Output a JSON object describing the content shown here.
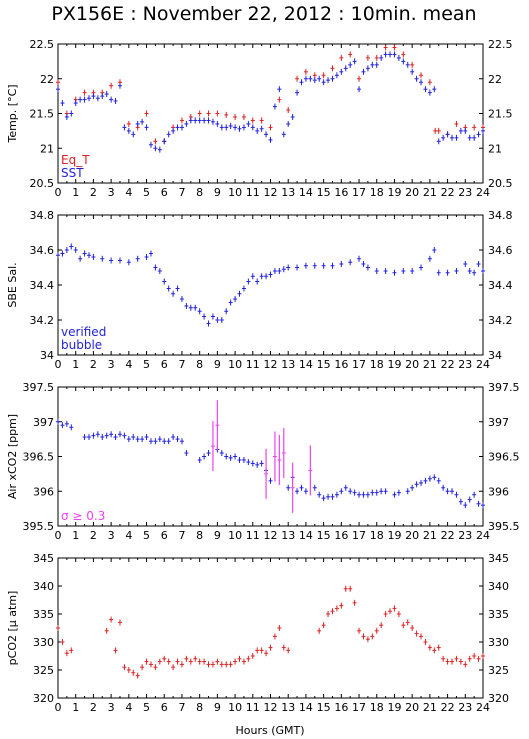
{
  "title": "PX156E : November 22, 2012 : 10min. mean",
  "xlabel": "Hours (GMT)",
  "colors": {
    "blue": "#2222dd",
    "red": "#dd2222",
    "orange": "#ee7711",
    "magenta": "#ee44ee",
    "frame": "#000000"
  },
  "chart_data": [
    {
      "type": "scatter",
      "ylabel": "Temp. [°C]",
      "xlim": [
        0,
        24
      ],
      "ylim": [
        20.5,
        22.5
      ],
      "yticks": [
        "20.5",
        "21",
        "21.5",
        "22",
        "22.5"
      ],
      "xticks": [
        "0",
        "1",
        "2",
        "3",
        "4",
        "5",
        "6",
        "7",
        "8",
        "9",
        "10",
        "11",
        "12",
        "13",
        "14",
        "15",
        "16",
        "17",
        "18",
        "19",
        "20",
        "21",
        "22",
        "23",
        "24"
      ],
      "legend": [
        "Eq_T",
        "SST"
      ],
      "legend_position": "bottom-left",
      "series": [
        {
          "name": "Eq_T",
          "color": "red",
          "x": [
            0.0,
            0.5,
            1.0,
            1.5,
            2.0,
            2.5,
            3.0,
            3.5,
            4.0,
            4.5,
            5.0,
            5.5,
            6.0,
            6.5,
            7.0,
            7.5,
            8.0,
            8.5,
            9.0,
            9.5,
            10.0,
            10.5,
            11.0,
            11.5,
            12.0,
            12.5,
            13.0,
            13.5,
            14.0,
            14.5,
            15.0,
            15.5,
            16.0,
            16.5,
            17.0,
            17.5,
            18.0,
            18.5,
            19.0,
            19.5,
            20.0,
            20.5,
            21.0,
            21.3,
            21.5,
            22.0,
            22.5,
            23.0,
            23.5,
            24.0
          ],
          "y": [
            21.95,
            21.5,
            21.7,
            21.8,
            21.8,
            21.8,
            21.9,
            21.95,
            21.35,
            21.3,
            21.5,
            21.1,
            21.1,
            21.3,
            21.4,
            21.45,
            21.5,
            21.5,
            21.5,
            21.48,
            21.45,
            21.45,
            21.4,
            21.4,
            21.3,
            21.7,
            21.55,
            22.0,
            22.1,
            22.05,
            22.05,
            22.15,
            22.3,
            22.35,
            22.0,
            22.3,
            22.3,
            22.45,
            22.45,
            22.35,
            22.2,
            22.05,
            21.95,
            21.25,
            21.25,
            21.2,
            21.35,
            21.3,
            21.3,
            21.3
          ]
        },
        {
          "name": "SST",
          "color": "blue",
          "x": [
            0.0,
            0.25,
            0.5,
            0.75,
            1.0,
            1.25,
            1.5,
            1.75,
            2.0,
            2.25,
            2.5,
            2.75,
            3.0,
            3.25,
            3.5,
            3.75,
            4.0,
            4.25,
            4.5,
            4.75,
            5.0,
            5.25,
            5.5,
            5.75,
            6.0,
            6.25,
            6.5,
            6.75,
            7.0,
            7.25,
            7.5,
            7.75,
            8.0,
            8.25,
            8.5,
            8.75,
            9.0,
            9.25,
            9.5,
            9.75,
            10.0,
            10.25,
            10.5,
            10.75,
            11.0,
            11.25,
            11.5,
            11.75,
            12.0,
            12.25,
            12.5,
            12.75,
            13.0,
            13.25,
            13.5,
            13.75,
            14.0,
            14.25,
            14.5,
            14.75,
            15.0,
            15.25,
            15.5,
            15.75,
            16.0,
            16.25,
            16.5,
            16.75,
            17.0,
            17.25,
            17.5,
            17.75,
            18.0,
            18.25,
            18.5,
            18.75,
            19.0,
            19.25,
            19.5,
            19.75,
            20.0,
            20.25,
            20.5,
            20.75,
            21.0,
            21.25,
            21.5,
            21.75,
            22.0,
            22.25,
            22.5,
            22.75,
            23.0,
            23.25,
            23.5,
            23.75,
            24.0
          ],
          "y": [
            21.85,
            21.65,
            21.45,
            21.5,
            21.65,
            21.7,
            21.7,
            21.72,
            21.75,
            21.72,
            21.75,
            21.78,
            21.7,
            21.68,
            21.9,
            21.3,
            21.25,
            21.2,
            21.35,
            21.38,
            21.3,
            21.05,
            21.0,
            20.98,
            21.1,
            21.2,
            21.25,
            21.3,
            21.3,
            21.35,
            21.4,
            21.4,
            21.4,
            21.4,
            21.4,
            21.38,
            21.35,
            21.3,
            21.3,
            21.32,
            21.3,
            21.28,
            21.3,
            21.35,
            21.3,
            21.25,
            21.28,
            21.2,
            21.12,
            21.6,
            21.85,
            21.2,
            21.35,
            21.45,
            21.8,
            21.95,
            22.0,
            22.0,
            21.98,
            22.0,
            21.95,
            21.98,
            22.0,
            22.05,
            22.1,
            22.15,
            22.2,
            22.25,
            21.85,
            22.1,
            22.15,
            22.2,
            22.2,
            22.3,
            22.35,
            22.35,
            22.35,
            22.3,
            22.25,
            22.2,
            22.1,
            22.0,
            21.95,
            21.85,
            21.8,
            21.85,
            21.1,
            21.15,
            21.2,
            21.15,
            21.15,
            21.25,
            21.25,
            21.15,
            21.15,
            21.2,
            21.25
          ]
        }
      ]
    },
    {
      "type": "scatter",
      "ylabel": "SBE Sal.",
      "xlim": [
        0,
        24
      ],
      "ylim": [
        34.0,
        34.8
      ],
      "yticks": [
        "34",
        "34.2",
        "34.4",
        "34.6",
        "34.8"
      ],
      "xticks": [
        "0",
        "1",
        "2",
        "3",
        "4",
        "5",
        "6",
        "7",
        "8",
        "9",
        "10",
        "11",
        "12",
        "13",
        "14",
        "15",
        "16",
        "17",
        "18",
        "19",
        "20",
        "21",
        "22",
        "23",
        "24"
      ],
      "legend": [
        "verified",
        "bubble"
      ],
      "legend_position": "bottom-left",
      "series": [
        {
          "name": "verified",
          "color": "blue",
          "x": [
            0.0,
            0.25,
            0.5,
            0.75,
            1.0,
            1.25,
            1.5,
            1.75,
            2.0,
            2.5,
            3.0,
            3.5,
            4.0,
            4.5,
            5.0,
            5.25,
            5.5,
            5.75,
            6.0,
            6.25,
            6.5,
            6.75,
            7.0,
            7.25,
            7.5,
            7.75,
            8.0,
            8.25,
            8.5,
            8.75,
            9.0,
            9.25,
            9.5,
            9.75,
            10.0,
            10.25,
            10.5,
            10.75,
            11.0,
            11.25,
            11.5,
            11.75,
            12.0,
            12.25,
            12.5,
            12.75,
            13.0,
            13.5,
            14.0,
            14.5,
            15.0,
            15.5,
            16.0,
            16.5,
            17.0,
            17.25,
            17.5,
            18.0,
            18.5,
            19.0,
            19.5,
            20.0,
            20.5,
            21.0,
            21.25,
            21.5,
            22.0,
            22.5,
            23.0,
            23.25,
            23.5,
            23.75,
            24.0
          ],
          "y": [
            34.57,
            34.58,
            34.6,
            34.62,
            34.6,
            34.55,
            34.58,
            34.57,
            34.56,
            34.55,
            34.54,
            34.54,
            34.53,
            34.55,
            34.56,
            34.58,
            34.5,
            34.48,
            34.42,
            34.38,
            34.35,
            34.38,
            34.32,
            34.28,
            34.27,
            34.27,
            34.25,
            34.22,
            34.18,
            34.22,
            34.2,
            34.2,
            34.25,
            34.3,
            34.32,
            34.35,
            34.38,
            34.42,
            34.45,
            34.42,
            34.45,
            34.45,
            34.46,
            34.48,
            34.48,
            34.49,
            34.5,
            34.5,
            34.51,
            34.51,
            34.51,
            34.51,
            34.52,
            34.53,
            34.55,
            34.52,
            34.5,
            34.48,
            34.48,
            34.47,
            34.48,
            34.48,
            34.5,
            34.55,
            34.6,
            34.47,
            34.47,
            34.48,
            34.52,
            34.48,
            34.47,
            34.52,
            34.48
          ]
        }
      ]
    },
    {
      "type": "scatter",
      "ylabel": "Air xCO2 [ppm]",
      "xlim": [
        0,
        24
      ],
      "ylim": [
        395.5,
        397.5
      ],
      "yticks": [
        "395.5",
        "396",
        "396.5",
        "397",
        "397.5"
      ],
      "xticks": [
        "0",
        "1",
        "2",
        "3",
        "4",
        "5",
        "6",
        "7",
        "8",
        "9",
        "10",
        "11",
        "12",
        "13",
        "14",
        "15",
        "16",
        "17",
        "18",
        "19",
        "20",
        "21",
        "22",
        "23",
        "24"
      ],
      "legend": [
        "σ ≥ 0.3"
      ],
      "legend_position": "bottom-left",
      "series": [
        {
          "name": "",
          "color": "blue",
          "x": [
            0.0,
            0.25,
            0.5,
            0.75,
            1.5,
            1.75,
            2.0,
            2.25,
            2.5,
            2.75,
            3.0,
            3.25,
            3.5,
            3.75,
            4.0,
            4.25,
            4.5,
            4.75,
            5.0,
            5.25,
            5.5,
            5.75,
            6.0,
            6.25,
            6.5,
            6.75,
            7.0,
            7.25,
            8.0,
            8.25,
            8.5,
            9.0,
            9.25,
            9.5,
            9.75,
            10.0,
            10.25,
            10.5,
            10.75,
            11.0,
            11.25,
            11.5,
            11.75,
            12.0,
            13.0,
            13.25,
            13.5,
            13.75,
            14.0,
            14.5,
            14.75,
            15.0,
            15.25,
            15.5,
            15.75,
            16.0,
            16.25,
            16.5,
            16.75,
            17.0,
            17.25,
            17.5,
            17.75,
            18.0,
            18.25,
            18.5,
            19.0,
            19.25,
            19.75,
            20.0,
            20.25,
            20.5,
            20.75,
            21.0,
            21.25,
            21.5,
            21.75,
            22.0,
            22.25,
            22.5,
            22.75,
            23.0,
            23.25,
            23.5,
            23.75,
            24.0
          ],
          "y": [
            397.0,
            396.95,
            396.97,
            396.92,
            396.78,
            396.78,
            396.8,
            396.82,
            396.78,
            396.8,
            396.82,
            396.78,
            396.82,
            396.8,
            396.75,
            396.78,
            396.75,
            396.75,
            396.78,
            396.72,
            396.72,
            396.75,
            396.72,
            396.72,
            396.78,
            396.75,
            396.72,
            396.55,
            396.45,
            396.5,
            396.55,
            396.6,
            396.55,
            396.5,
            396.48,
            396.5,
            396.45,
            396.45,
            396.42,
            396.4,
            396.38,
            396.4,
            396.3,
            396.15,
            396.05,
            396.2,
            396.0,
            396.05,
            396.0,
            396.05,
            395.95,
            395.9,
            395.92,
            395.92,
            395.95,
            396.0,
            396.05,
            396.0,
            395.98,
            395.95,
            395.95,
            395.95,
            395.98,
            395.98,
            396.0,
            396.0,
            395.95,
            395.98,
            396.0,
            396.05,
            396.1,
            396.12,
            396.15,
            396.18,
            396.2,
            396.15,
            396.05,
            396.0,
            396.0,
            395.95,
            395.85,
            395.8,
            395.88,
            395.95,
            395.82,
            395.8
          ]
        },
        {
          "name": "σ ≥ 0.3",
          "color": "magenta",
          "x": [
            8.75,
            9.0,
            11.75,
            12.25,
            12.5,
            12.75,
            13.25,
            14.25
          ],
          "y": [
            396.65,
            396.95,
            396.25,
            396.5,
            396.45,
            396.55,
            396.05,
            396.3
          ]
        }
      ]
    },
    {
      "type": "scatter",
      "ylabel": "pCO2 [μ atm]",
      "xlabel": "Hours (GMT)",
      "xlim": [
        0,
        24
      ],
      "ylim": [
        320,
        345
      ],
      "yticks": [
        "320",
        "325",
        "330",
        "335",
        "340",
        "345"
      ],
      "xticks": [
        "0",
        "1",
        "2",
        "3",
        "4",
        "5",
        "6",
        "7",
        "8",
        "9",
        "10",
        "11",
        "12",
        "13",
        "14",
        "15",
        "16",
        "17",
        "18",
        "19",
        "20",
        "21",
        "22",
        "23",
        "24"
      ],
      "series": [
        {
          "name": "",
          "color": "red",
          "x": [
            0.0,
            0.25,
            0.5,
            0.75,
            2.75,
            3.0,
            3.25,
            3.5,
            3.75,
            4.0,
            4.25,
            4.5,
            4.75,
            5.0,
            5.25,
            5.5,
            5.75,
            6.0,
            6.25,
            6.5,
            6.75,
            7.0,
            7.25,
            7.5,
            7.75,
            8.0,
            8.25,
            8.5,
            8.75,
            9.0,
            9.25,
            9.5,
            9.75,
            10.0,
            10.25,
            10.5,
            10.75,
            11.0,
            11.25,
            11.5,
            11.75,
            12.0,
            12.25,
            12.5,
            12.75,
            13.0,
            14.75,
            15.0,
            15.25,
            15.5,
            15.75,
            16.0,
            16.25,
            16.5,
            16.75,
            17.0,
            17.25,
            17.5,
            17.75,
            18.0,
            18.25,
            18.5,
            18.75,
            19.0,
            19.25,
            19.5,
            19.75,
            20.0,
            20.25,
            20.5,
            20.75,
            21.0,
            21.25,
            21.5,
            21.75,
            22.0,
            22.25,
            22.5,
            22.75,
            23.0,
            23.25,
            23.5,
            23.75,
            24.0
          ],
          "y": [
            332.5,
            330.0,
            328.0,
            328.5,
            332.0,
            334.0,
            328.5,
            333.5,
            325.5,
            325.0,
            324.5,
            324.0,
            325.5,
            326.5,
            326.0,
            325.5,
            326.5,
            327.0,
            326.5,
            325.5,
            326.5,
            326.0,
            327.0,
            326.5,
            327.0,
            326.5,
            326.5,
            326.0,
            326.0,
            326.5,
            326.0,
            326.0,
            326.0,
            326.5,
            327.0,
            326.5,
            327.0,
            327.5,
            328.5,
            328.5,
            328.0,
            329.0,
            331.0,
            332.5,
            329.0,
            328.5,
            332.0,
            333.0,
            335.0,
            335.5,
            336.0,
            336.5,
            339.5,
            339.5,
            337.0,
            332.0,
            331.0,
            330.5,
            331.0,
            332.0,
            333.0,
            335.0,
            335.5,
            336.0,
            335.0,
            333.0,
            333.5,
            332.5,
            331.5,
            331.0,
            330.0,
            329.0,
            328.5,
            329.0,
            327.0,
            326.5,
            326.5,
            327.0,
            326.5,
            326.0,
            327.0,
            327.5,
            327.0,
            327.5
          ]
        }
      ]
    }
  ]
}
